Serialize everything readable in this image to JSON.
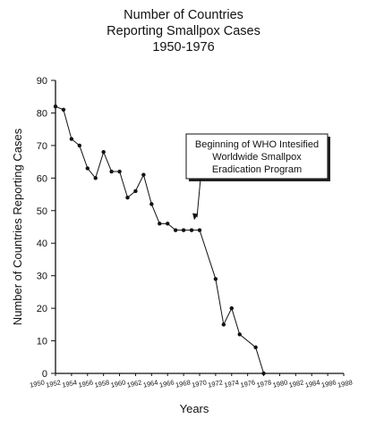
{
  "chart_data": {
    "type": "line",
    "title_lines": [
      "Number of Countries",
      "Reporting Smallpox Cases",
      "1950-1976"
    ],
    "xlabel": "Years",
    "ylabel": "Number of Countries Reporting Cases",
    "xlim": [
      1950,
      1986
    ],
    "ylim": [
      0,
      90
    ],
    "yticks": [
      0,
      10,
      20,
      30,
      40,
      50,
      60,
      70,
      80,
      90
    ],
    "xtick_labels": [
      "1950",
      "1952",
      "1954",
      "1956",
      "1958",
      "1960",
      "1962",
      "1964",
      "1966",
      "1968",
      "1970",
      "1972",
      "1974",
      "1976",
      "1978",
      "1980",
      "1982",
      "1984",
      "1986",
      "1988"
    ],
    "grid": false,
    "series": [
      {
        "x": [
          1950,
          1951,
          1952,
          1953,
          1954,
          1955,
          1956,
          1957,
          1958,
          1959,
          1960,
          1961,
          1962,
          1963,
          1964,
          1965,
          1966,
          1967,
          1968,
          1970,
          1971,
          1972,
          1973,
          1975,
          1976
        ],
        "values": [
          82,
          81,
          72,
          70,
          63,
          60,
          68,
          62,
          62,
          54,
          56,
          61,
          52,
          46,
          46,
          44,
          44,
          44,
          44,
          29,
          15,
          20,
          12,
          8,
          0
        ]
      }
    ],
    "annotation": {
      "lines": [
        "Beginning of WHO Intesified",
        "Worldwide Smallpox",
        "Eradication Program"
      ],
      "target_x": 1967,
      "target_y": 46
    }
  }
}
